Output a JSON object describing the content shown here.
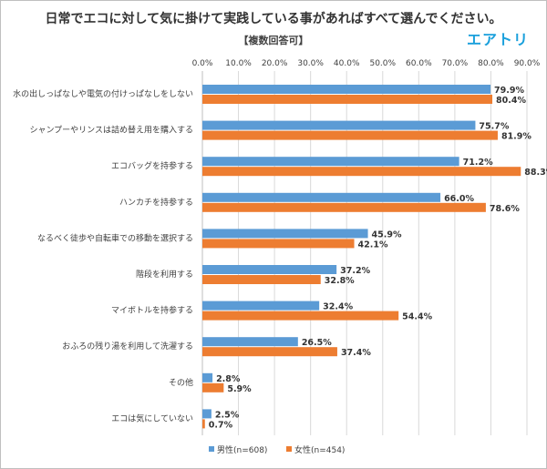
{
  "title": "日常でエコに対して気に掛けて実践している事があればすべて選んでください。",
  "subtitle": "【複数回答可】",
  "brand": {
    "name": "エアトリ",
    "color": "#1aa0dc"
  },
  "colors": {
    "male": "#5b9bd5",
    "female": "#ed7d31",
    "grid": "#d9d9d9",
    "axis": "#bfbfbf",
    "text": "#404040"
  },
  "chart_data": {
    "type": "bar",
    "orientation": "horizontal",
    "title": "日常でエコに対して気に掛けて実践している事があればすべて選んでください。",
    "subtitle": "【複数回答可】",
    "categories": [
      "水の出しっぱなしや電気の付けっぱなしをしない",
      "シャンプーやリンスは詰め替え用を購入する",
      "エコバッグを持参する",
      "ハンカチを持参する",
      "なるべく徒歩や自転車での移動を選択する",
      "階段を利用する",
      "マイボトルを持参する",
      "おふろの残り湯を利用して洗濯する",
      "その他",
      "エコは気にしていない"
    ],
    "series": [
      {
        "name": "男性(n=608)",
        "values": [
          79.9,
          75.7,
          71.2,
          66.0,
          45.9,
          37.2,
          32.4,
          26.5,
          2.8,
          2.5
        ]
      },
      {
        "name": "女性(n=454)",
        "values": [
          80.4,
          81.9,
          88.3,
          78.6,
          42.1,
          32.8,
          54.4,
          37.4,
          5.9,
          0.7
        ]
      }
    ],
    "xlim": [
      0,
      90
    ],
    "xticks": [
      0,
      10,
      20,
      30,
      40,
      50,
      60,
      70,
      80,
      90
    ],
    "xtick_labels": [
      "0.0%",
      "10.0%",
      "20.0%",
      "30.0%",
      "40.0%",
      "50.0%",
      "60.0%",
      "70.0%",
      "80.0%",
      "90.0%"
    ],
    "value_suffix": "%",
    "grid": true,
    "legend_position": "bottom"
  }
}
